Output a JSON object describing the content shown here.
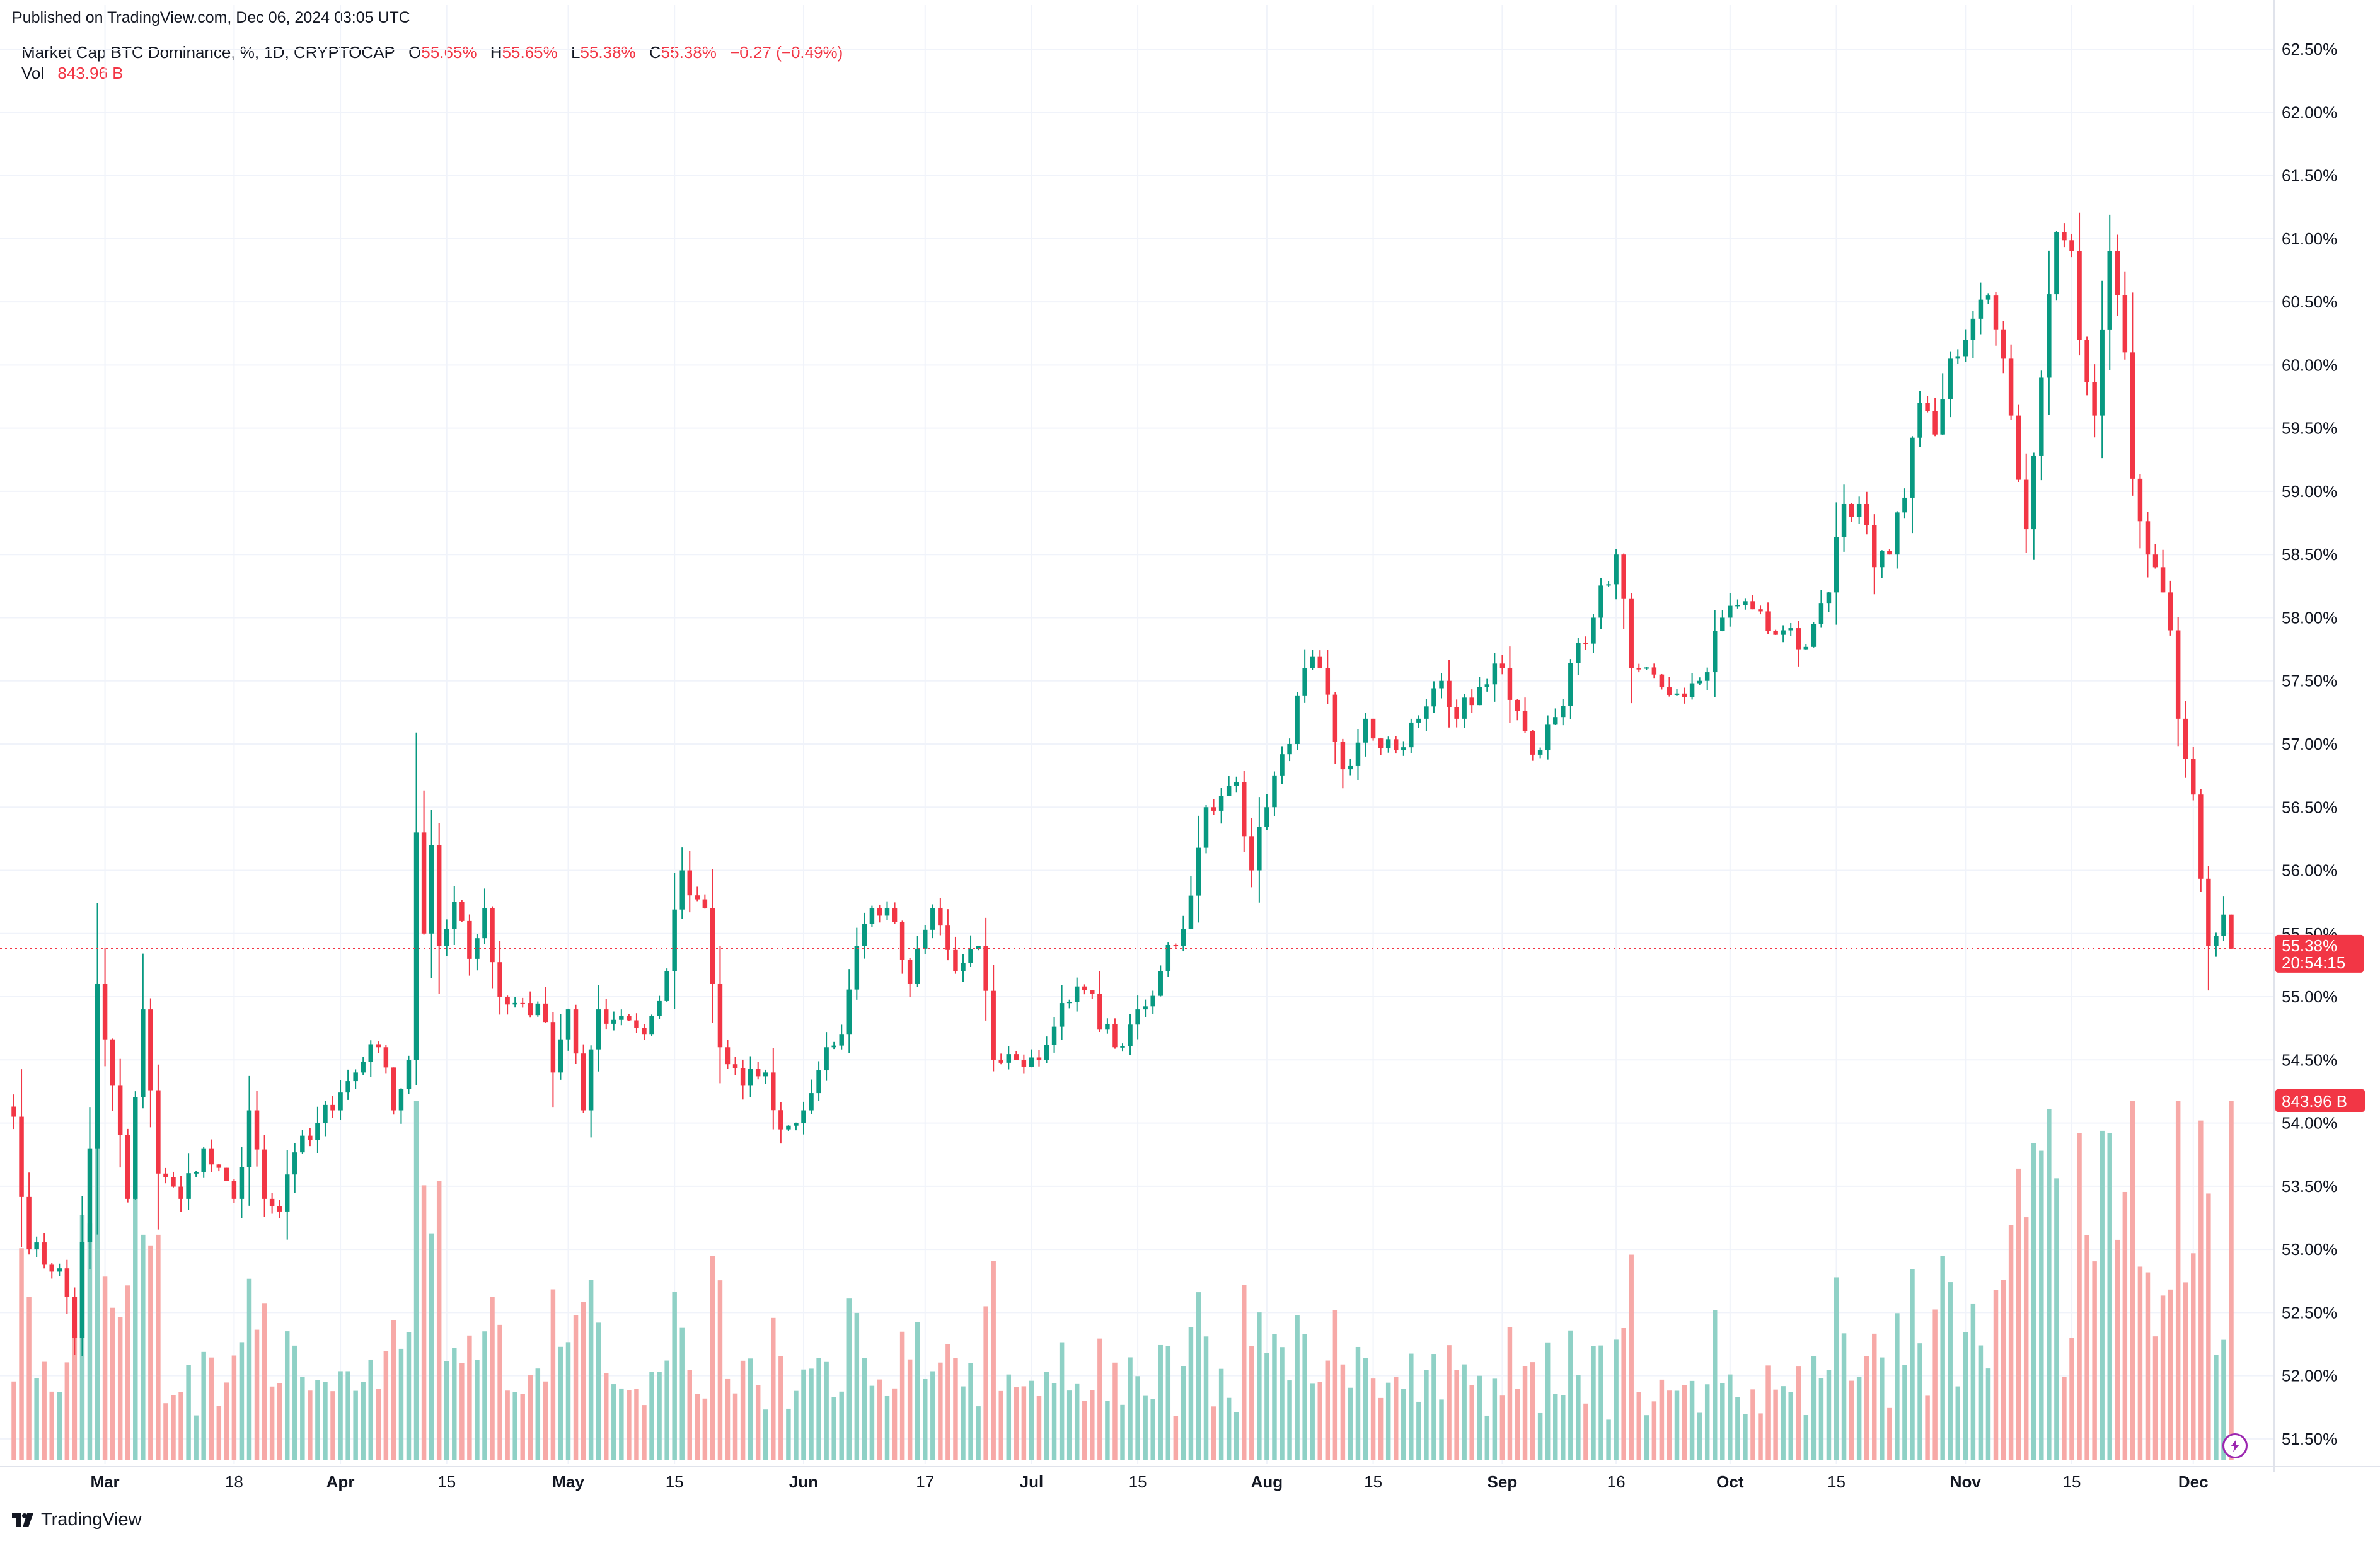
{
  "header": {
    "published": "Published on TradingView.com, Dec 06, 2024 03:05 UTC"
  },
  "legend": {
    "symbol": "Market Cap BTC Dominance, %, 1D, CRYPTOCAP",
    "o_label": "O",
    "o_value": "55.65%",
    "h_label": "H",
    "h_value": "55.65%",
    "l_label": "L",
    "l_value": "55.38%",
    "c_label": "C",
    "c_value": "55.38%",
    "change": "−0.27 (−0.49%)",
    "vol_label": "Vol",
    "vol_value": "843.96 B"
  },
  "price_badge": {
    "price": "55.38%",
    "countdown": "20:54:15"
  },
  "volume_badge": "843.96 B",
  "footer": {
    "brand": "TradingView"
  },
  "colors": {
    "up": "#089981",
    "down": "#f23645",
    "vol_up": "#8fd1c6",
    "vol_down": "#f7a9a7",
    "grid": "#f0f3fa",
    "axis_text": "#131722"
  },
  "chart_data": {
    "type": "candlestick",
    "title": "Market Cap BTC Dominance, %, 1D, CRYPTOCAP",
    "y_unit": "%",
    "ylim": [
      51.3,
      62.65
    ],
    "y_ticks": [
      "62.50%",
      "62.00%",
      "61.50%",
      "61.00%",
      "60.50%",
      "60.00%",
      "59.50%",
      "59.00%",
      "58.50%",
      "58.00%",
      "57.50%",
      "57.00%",
      "56.50%",
      "56.00%",
      "55.50%",
      "55.00%",
      "54.50%",
      "54.00%",
      "53.50%",
      "53.00%",
      "52.50%",
      "52.00%",
      "51.50%"
    ],
    "x_ticks": [
      {
        "label": "Mar",
        "date": "2024-03-01"
      },
      {
        "label": "18",
        "date": "2024-03-18"
      },
      {
        "label": "Apr",
        "date": "2024-04-01"
      },
      {
        "label": "15",
        "date": "2024-04-15"
      },
      {
        "label": "May",
        "date": "2024-05-01"
      },
      {
        "label": "15",
        "date": "2024-05-15"
      },
      {
        "label": "Jun",
        "date": "2024-06-01"
      },
      {
        "label": "17",
        "date": "2024-06-17"
      },
      {
        "label": "Jul",
        "date": "2024-07-01"
      },
      {
        "label": "15",
        "date": "2024-07-15"
      },
      {
        "label": "Aug",
        "date": "2024-08-01"
      },
      {
        "label": "15",
        "date": "2024-08-15"
      },
      {
        "label": "Sep",
        "date": "2024-09-01"
      },
      {
        "label": "16",
        "date": "2024-09-16"
      },
      {
        "label": "Oct",
        "date": "2024-10-01"
      },
      {
        "label": "15",
        "date": "2024-10-15"
      },
      {
        "label": "Nov",
        "date": "2024-11-01"
      },
      {
        "label": "15",
        "date": "2024-11-15"
      },
      {
        "label": "Dec",
        "date": "2024-12-01"
      }
    ],
    "start_date": "2024-02-18",
    "end_date": "2024-12-06",
    "last_close": 55.38,
    "anchors": [
      {
        "date": "2024-02-18",
        "close": 54.05
      },
      {
        "date": "2024-02-20",
        "close": 53.0
      },
      {
        "date": "2024-02-24",
        "close": 52.85
      },
      {
        "date": "2024-02-26",
        "close": 52.3
      },
      {
        "date": "2024-02-28",
        "close": 53.8
      },
      {
        "date": "2024-02-29",
        "close": 55.1
      },
      {
        "date": "2024-03-02",
        "close": 54.3
      },
      {
        "date": "2024-03-04",
        "close": 53.4
      },
      {
        "date": "2024-03-06",
        "close": 54.9
      },
      {
        "date": "2024-03-08",
        "close": 53.6
      },
      {
        "date": "2024-03-11",
        "close": 53.4
      },
      {
        "date": "2024-03-14",
        "close": 53.8
      },
      {
        "date": "2024-03-18",
        "close": 53.4
      },
      {
        "date": "2024-03-20",
        "close": 54.1
      },
      {
        "date": "2024-03-22",
        "close": 53.4
      },
      {
        "date": "2024-03-24",
        "close": 53.3
      },
      {
        "date": "2024-03-27",
        "close": 53.9
      },
      {
        "date": "2024-03-31",
        "close": 54.1
      },
      {
        "date": "2024-04-03",
        "close": 54.4
      },
      {
        "date": "2024-04-06",
        "close": 54.6
      },
      {
        "date": "2024-04-08",
        "close": 54.1
      },
      {
        "date": "2024-04-10",
        "close": 54.5
      },
      {
        "date": "2024-04-11",
        "close": 56.3
      },
      {
        "date": "2024-04-12",
        "close": 55.5
      },
      {
        "date": "2024-04-13",
        "close": 56.2
      },
      {
        "date": "2024-04-14",
        "close": 55.4
      },
      {
        "date": "2024-04-16",
        "close": 55.75
      },
      {
        "date": "2024-04-18",
        "close": 55.3
      },
      {
        "date": "2024-04-20",
        "close": 55.7
      },
      {
        "date": "2024-04-22",
        "close": 55.0
      },
      {
        "date": "2024-04-25",
        "close": 54.95
      },
      {
        "date": "2024-04-28",
        "close": 54.8
      },
      {
        "date": "2024-04-29",
        "close": 54.4
      },
      {
        "date": "2024-05-01",
        "close": 54.9
      },
      {
        "date": "2024-05-03",
        "close": 54.1
      },
      {
        "date": "2024-05-05",
        "close": 54.9
      },
      {
        "date": "2024-05-08",
        "close": 54.85
      },
      {
        "date": "2024-05-11",
        "close": 54.7
      },
      {
        "date": "2024-05-14",
        "close": 55.2
      },
      {
        "date": "2024-05-16",
        "close": 56.0
      },
      {
        "date": "2024-05-19",
        "close": 55.7
      },
      {
        "date": "2024-05-20",
        "close": 55.1
      },
      {
        "date": "2024-05-21",
        "close": 54.6
      },
      {
        "date": "2024-05-24",
        "close": 54.3
      },
      {
        "date": "2024-05-27",
        "close": 54.4
      },
      {
        "date": "2024-05-29",
        "close": 53.95
      },
      {
        "date": "2024-06-01",
        "close": 54.1
      },
      {
        "date": "2024-06-04",
        "close": 54.6
      },
      {
        "date": "2024-06-06",
        "close": 54.7
      },
      {
        "date": "2024-06-08",
        "close": 55.4
      },
      {
        "date": "2024-06-10",
        "close": 55.7
      },
      {
        "date": "2024-06-12",
        "close": 55.7
      },
      {
        "date": "2024-06-15",
        "close": 55.1
      },
      {
        "date": "2024-06-18",
        "close": 55.7
      },
      {
        "date": "2024-06-21",
        "close": 55.2
      },
      {
        "date": "2024-06-24",
        "close": 55.4
      },
      {
        "date": "2024-06-26",
        "close": 54.5
      },
      {
        "date": "2024-06-29",
        "close": 54.5
      },
      {
        "date": "2024-07-02",
        "close": 54.5
      },
      {
        "date": "2024-07-05",
        "close": 54.95
      },
      {
        "date": "2024-07-08",
        "close": 55.05
      },
      {
        "date": "2024-07-12",
        "close": 54.6
      },
      {
        "date": "2024-07-15",
        "close": 54.9
      },
      {
        "date": "2024-07-18",
        "close": 55.2
      },
      {
        "date": "2024-07-20",
        "close": 55.4
      },
      {
        "date": "2024-07-22",
        "close": 55.8
      },
      {
        "date": "2024-07-24",
        "close": 56.5
      },
      {
        "date": "2024-07-28",
        "close": 56.7
      },
      {
        "date": "2024-07-30",
        "close": 56.0
      },
      {
        "date": "2024-08-01",
        "close": 56.5
      },
      {
        "date": "2024-08-04",
        "close": 57.0
      },
      {
        "date": "2024-08-06",
        "close": 57.6
      },
      {
        "date": "2024-08-08",
        "close": 57.6
      },
      {
        "date": "2024-08-11",
        "close": 56.8
      },
      {
        "date": "2024-08-14",
        "close": 57.2
      },
      {
        "date": "2024-08-18",
        "close": 56.95
      },
      {
        "date": "2024-08-21",
        "close": 57.2
      },
      {
        "date": "2024-08-24",
        "close": 57.5
      },
      {
        "date": "2024-08-26",
        "close": 57.2
      },
      {
        "date": "2024-08-29",
        "close": 57.45
      },
      {
        "date": "2024-09-01",
        "close": 57.6
      },
      {
        "date": "2024-09-04",
        "close": 57.1
      },
      {
        "date": "2024-09-06",
        "close": 56.95
      },
      {
        "date": "2024-09-09",
        "close": 57.3
      },
      {
        "date": "2024-09-11",
        "close": 57.8
      },
      {
        "date": "2024-09-13",
        "close": 58.0
      },
      {
        "date": "2024-09-16",
        "close": 58.5
      },
      {
        "date": "2024-09-18",
        "close": 57.6
      },
      {
        "date": "2024-09-21",
        "close": 57.55
      },
      {
        "date": "2024-09-24",
        "close": 57.4
      },
      {
        "date": "2024-09-27",
        "close": 57.5
      },
      {
        "date": "2024-09-30",
        "close": 58.0
      },
      {
        "date": "2024-10-02",
        "close": 58.1
      },
      {
        "date": "2024-10-05",
        "close": 58.05
      },
      {
        "date": "2024-10-08",
        "close": 57.9
      },
      {
        "date": "2024-10-10",
        "close": 57.75
      },
      {
        "date": "2024-10-12",
        "close": 57.95
      },
      {
        "date": "2024-10-14",
        "close": 58.2
      },
      {
        "date": "2024-10-16",
        "close": 58.9
      },
      {
        "date": "2024-10-18",
        "close": 58.9
      },
      {
        "date": "2024-10-20",
        "close": 58.4
      },
      {
        "date": "2024-10-22",
        "close": 58.5
      },
      {
        "date": "2024-10-24",
        "close": 58.95
      },
      {
        "date": "2024-10-26",
        "close": 59.7
      },
      {
        "date": "2024-10-28",
        "close": 59.45
      },
      {
        "date": "2024-10-30",
        "close": 60.05
      },
      {
        "date": "2024-11-01",
        "close": 60.2
      },
      {
        "date": "2024-11-04",
        "close": 60.55
      },
      {
        "date": "2024-11-06",
        "close": 60.05
      },
      {
        "date": "2024-11-07",
        "close": 59.6
      },
      {
        "date": "2024-11-09",
        "close": 58.7
      },
      {
        "date": "2024-11-11",
        "close": 59.9
      },
      {
        "date": "2024-11-13",
        "close": 61.05
      },
      {
        "date": "2024-11-15",
        "close": 60.9
      },
      {
        "date": "2024-11-16",
        "close": 60.2
      },
      {
        "date": "2024-11-18",
        "close": 59.6
      },
      {
        "date": "2024-11-20",
        "close": 60.9
      },
      {
        "date": "2024-11-22",
        "close": 60.1
      },
      {
        "date": "2024-11-23",
        "close": 59.1
      },
      {
        "date": "2024-11-25",
        "close": 58.5
      },
      {
        "date": "2024-11-27",
        "close": 58.2
      },
      {
        "date": "2024-11-28",
        "close": 57.9
      },
      {
        "date": "2024-11-29",
        "close": 57.2
      },
      {
        "date": "2024-12-01",
        "close": 56.6
      },
      {
        "date": "2024-12-03",
        "close": 55.4
      },
      {
        "date": "2024-12-05",
        "close": 55.65
      },
      {
        "date": "2024-12-06",
        "close": 55.38
      }
    ],
    "latest_candle": {
      "date": "2024-12-06",
      "open": 55.65,
      "high": 55.65,
      "low": 55.38,
      "close": 55.38
    },
    "latest_volume": "843.96 B",
    "volume_scale_note": "volume bars share the lower pane; tallest bars near Nov 12 and Dec 06"
  }
}
